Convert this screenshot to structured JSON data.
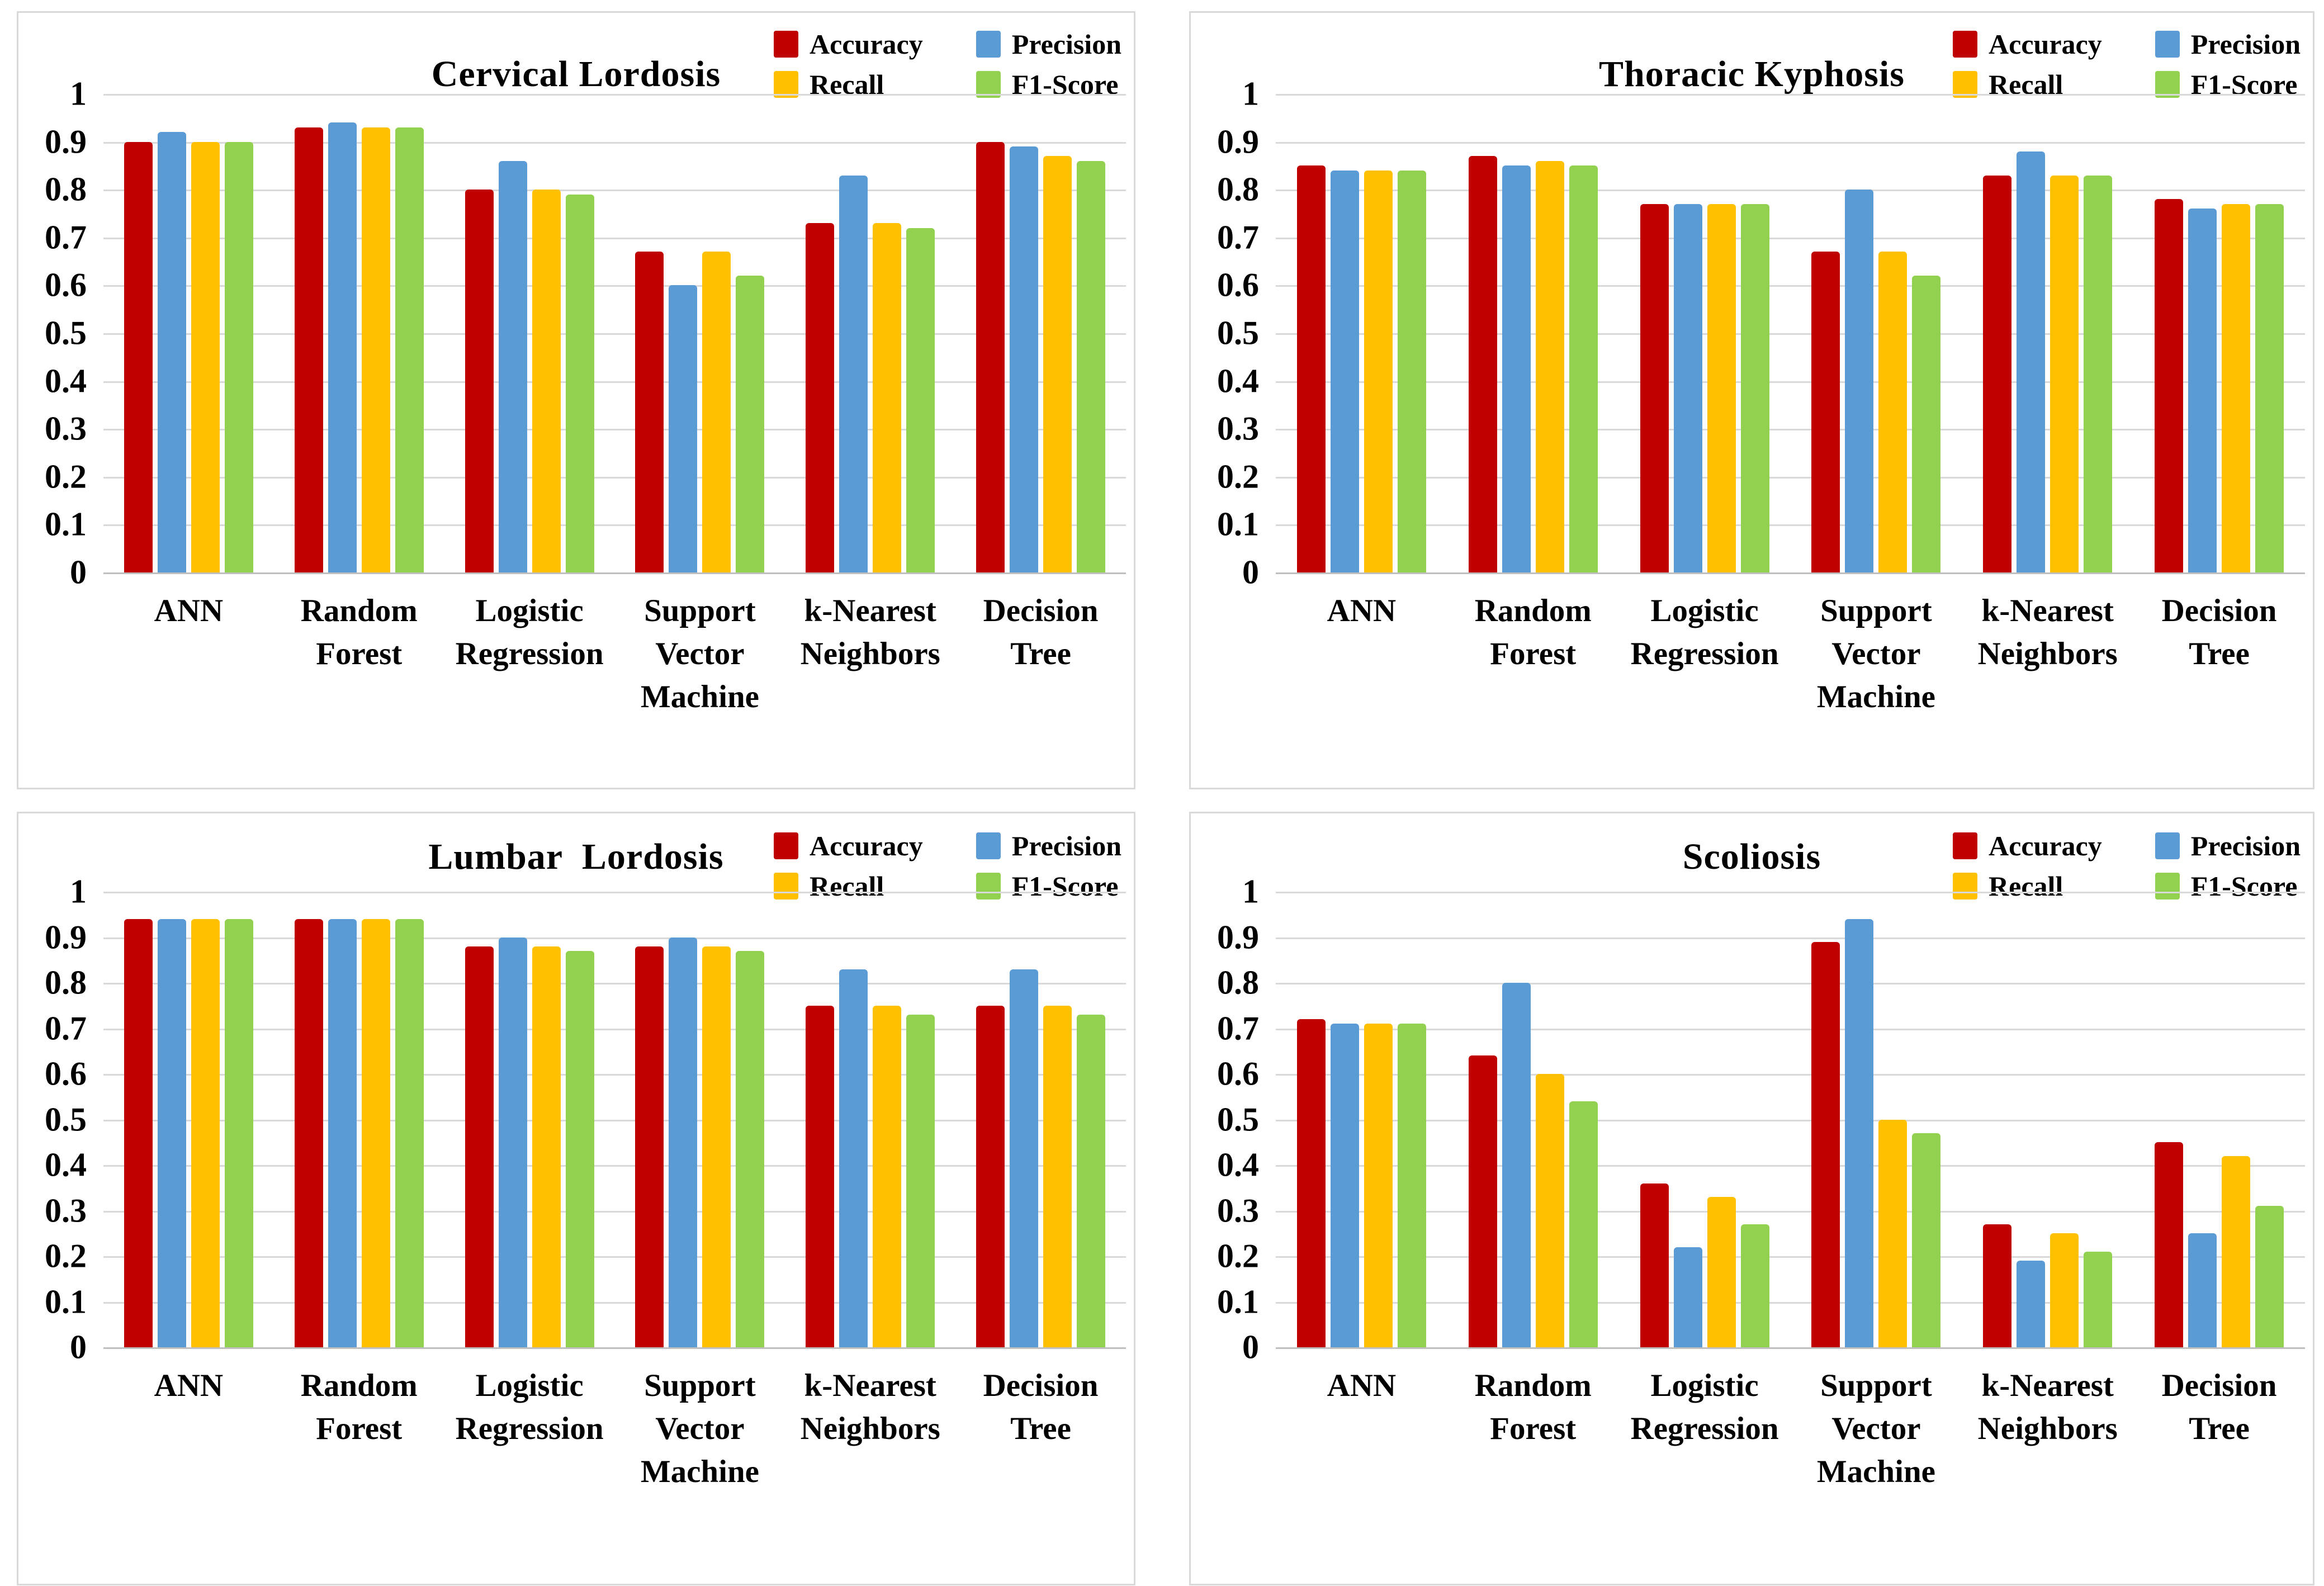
{
  "figure": {
    "background": "#FFFFFF",
    "panel_border_color": "#D9D9D9",
    "gridline_color": "#D9D9D9",
    "axis_line_color": "#BFBFBF",
    "text_color": "#000000"
  },
  "legend": [
    {
      "label": "Accuracy",
      "color": "#C00000"
    },
    {
      "label": "Precision",
      "color": "#5B9BD5"
    },
    {
      "label": "Recall",
      "color": "#FFC000"
    },
    {
      "label": "F1-Score",
      "color": "#92D050"
    }
  ],
  "y_axis": {
    "min": 0,
    "max": 1,
    "tick_step": 0.1,
    "tick_labels": [
      "1",
      "0.9",
      "0.8",
      "0.7",
      "0.6",
      "0.5",
      "0.4",
      "0.3",
      "0.2",
      "0.1",
      "0"
    ]
  },
  "categories": [
    "ANN",
    "Random\nForest",
    "Logistic\nRegression",
    "Support\nVector\nMachine",
    "k-Nearest\nNeighbors",
    "Decision\nTree"
  ],
  "chart_data": [
    {
      "type": "bar",
      "title": "Cervical Lordosis",
      "position": "top-left",
      "ylim": [
        0,
        1
      ],
      "grid": true,
      "legend_position": "top-right",
      "categories": [
        "ANN",
        "Random Forest",
        "Logistic Regression",
        "Support Vector Machine",
        "k-Nearest Neighbors",
        "Decision Tree"
      ],
      "series": [
        {
          "name": "Accuracy",
          "color": "#C00000",
          "values": [
            0.9,
            0.93,
            0.8,
            0.67,
            0.73,
            0.9
          ]
        },
        {
          "name": "Precision",
          "color": "#5B9BD5",
          "values": [
            0.92,
            0.94,
            0.86,
            0.6,
            0.83,
            0.89
          ]
        },
        {
          "name": "Recall",
          "color": "#FFC000",
          "values": [
            0.9,
            0.93,
            0.8,
            0.67,
            0.73,
            0.87
          ]
        },
        {
          "name": "F1-Score",
          "color": "#92D050",
          "values": [
            0.9,
            0.93,
            0.79,
            0.62,
            0.72,
            0.86
          ]
        }
      ]
    },
    {
      "type": "bar",
      "title": "Thoracic Kyphosis",
      "position": "top-right",
      "ylim": [
        0,
        1
      ],
      "grid": true,
      "legend_position": "top-right",
      "categories": [
        "ANN",
        "Random Forest",
        "Logistic Regression",
        "Support Vector Machine",
        "k-Nearest Neighbors",
        "Decision Tree"
      ],
      "series": [
        {
          "name": "Accuracy",
          "color": "#C00000",
          "values": [
            0.85,
            0.87,
            0.77,
            0.67,
            0.83,
            0.78
          ]
        },
        {
          "name": "Precision",
          "color": "#5B9BD5",
          "values": [
            0.84,
            0.85,
            0.77,
            0.8,
            0.88,
            0.76
          ]
        },
        {
          "name": "Recall",
          "color": "#FFC000",
          "values": [
            0.84,
            0.86,
            0.77,
            0.67,
            0.83,
            0.77
          ]
        },
        {
          "name": "F1-Score",
          "color": "#92D050",
          "values": [
            0.84,
            0.85,
            0.77,
            0.62,
            0.83,
            0.77
          ]
        }
      ]
    },
    {
      "type": "bar",
      "title": "Lumbar  Lordosis",
      "position": "bottom-left",
      "ylim": [
        0,
        1
      ],
      "grid": true,
      "legend_position": "top-right",
      "categories": [
        "ANN",
        "Random Forest",
        "Logistic Regression",
        "Support Vector Machine",
        "k-Nearest Neighbors",
        "Decision Tree"
      ],
      "series": [
        {
          "name": "Accuracy",
          "color": "#C00000",
          "values": [
            0.94,
            0.94,
            0.88,
            0.88,
            0.75,
            0.75
          ]
        },
        {
          "name": "Precision",
          "color": "#5B9BD5",
          "values": [
            0.94,
            0.94,
            0.9,
            0.9,
            0.83,
            0.83
          ]
        },
        {
          "name": "Recall",
          "color": "#FFC000",
          "values": [
            0.94,
            0.94,
            0.88,
            0.88,
            0.75,
            0.75
          ]
        },
        {
          "name": "F1-Score",
          "color": "#92D050",
          "values": [
            0.94,
            0.94,
            0.87,
            0.87,
            0.73,
            0.73
          ]
        }
      ]
    },
    {
      "type": "bar",
      "title": "Scoliosis",
      "position": "bottom-right",
      "ylim": [
        0,
        1
      ],
      "grid": true,
      "legend_position": "top-right",
      "categories": [
        "ANN",
        "Random Forest",
        "Logistic Regression",
        "Support Vector Machine",
        "k-Nearest Neighbors",
        "Decision Tree"
      ],
      "series": [
        {
          "name": "Accuracy",
          "color": "#C00000",
          "values": [
            0.72,
            0.64,
            0.36,
            0.89,
            0.27,
            0.45
          ]
        },
        {
          "name": "Precision",
          "color": "#5B9BD5",
          "values": [
            0.71,
            0.8,
            0.22,
            0.94,
            0.19,
            0.25
          ]
        },
        {
          "name": "Recall",
          "color": "#FFC000",
          "values": [
            0.71,
            0.6,
            0.33,
            0.5,
            0.25,
            0.42
          ]
        },
        {
          "name": "F1-Score",
          "color": "#92D050",
          "values": [
            0.71,
            0.54,
            0.27,
            0.47,
            0.21,
            0.31
          ]
        }
      ]
    }
  ]
}
